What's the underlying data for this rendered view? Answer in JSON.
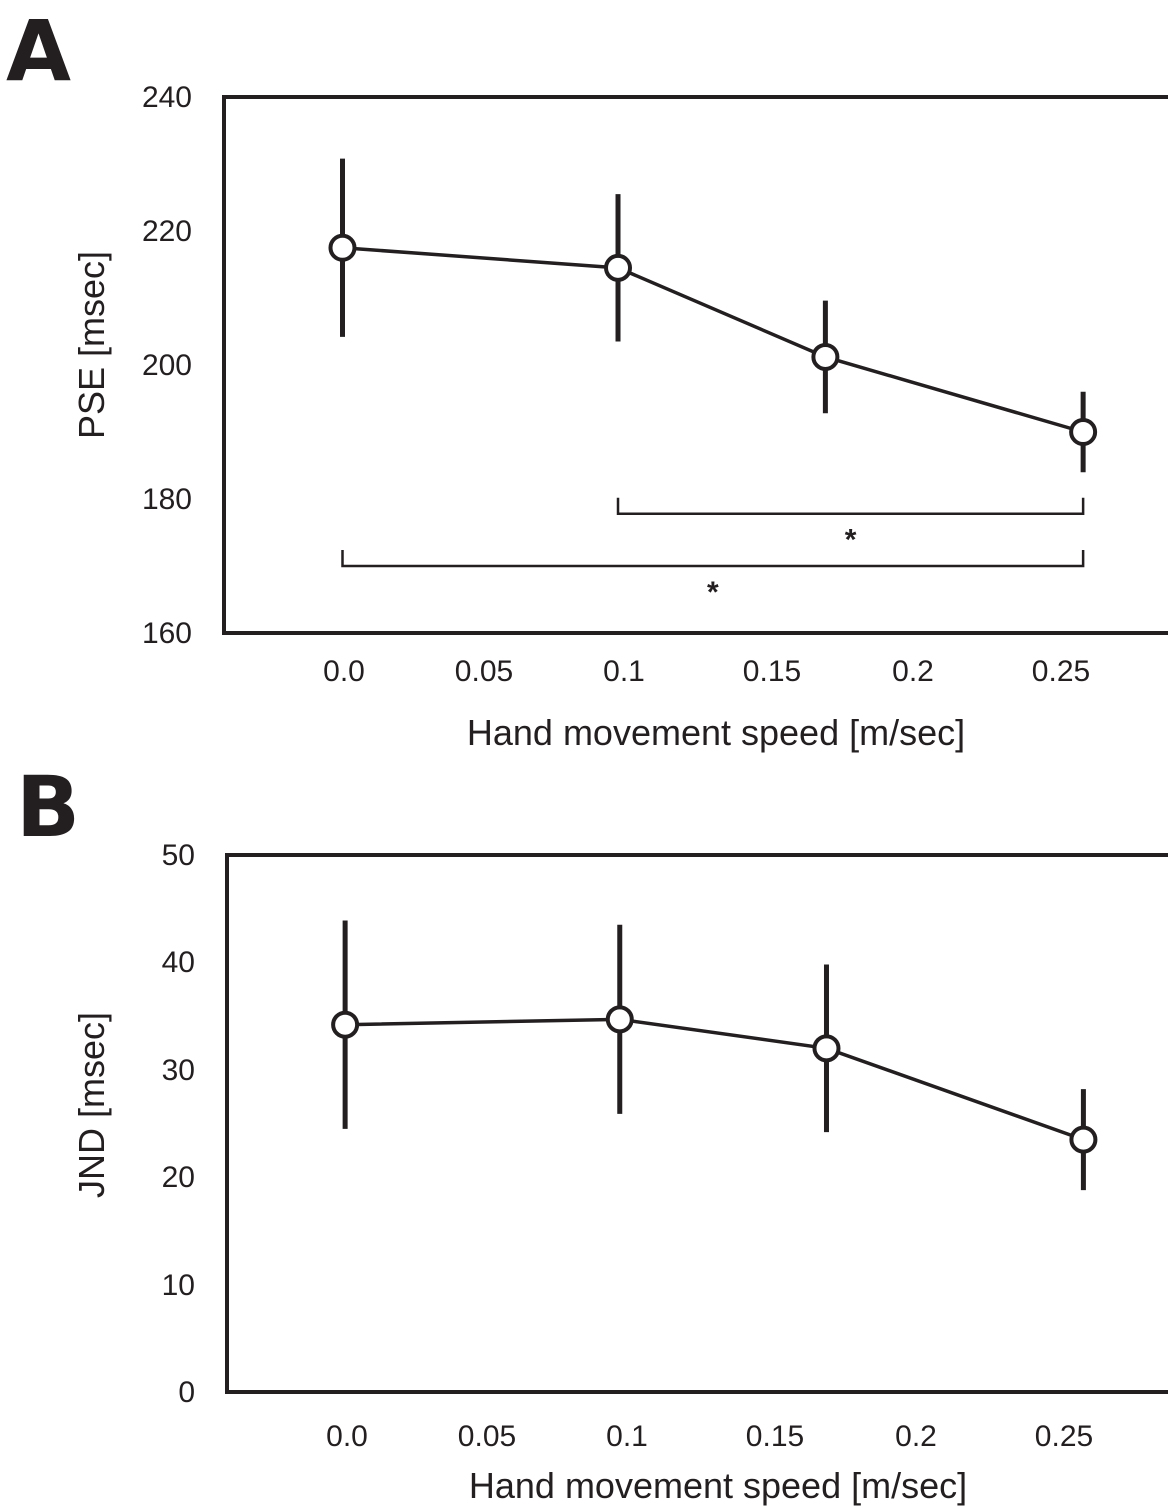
{
  "chart_data": [
    {
      "type": "line",
      "panel_label": "A",
      "xlabel": "Hand movement speed [m/sec]",
      "ylabel": "PSE [msec]",
      "x_ticks": [
        "0.0",
        "0.05",
        "0.1",
        "0.15",
        "0.2",
        "0.25"
      ],
      "y_ticks": [
        "240",
        "220",
        "200",
        "180",
        "160"
      ],
      "ylim": [
        160,
        240
      ],
      "xlim": [
        -0.04,
        0.28
      ],
      "x": [
        0.0,
        0.093,
        0.163,
        0.25
      ],
      "values": [
        217.5,
        214.5,
        201.2,
        190.0
      ],
      "errors": [
        13.3,
        11.0,
        8.4,
        6.0
      ],
      "significance": [
        {
          "from": 0.093,
          "to": 0.25,
          "y": 177.8,
          "label": "*"
        },
        {
          "from": 0.0,
          "to": 0.25,
          "y": 170.0,
          "label": "*"
        }
      ]
    },
    {
      "type": "line",
      "panel_label": "B",
      "xlabel": "Hand movement speed [m/sec]",
      "ylabel": "JND [msec]",
      "x_ticks": [
        "0.0",
        "0.05",
        "0.1",
        "0.15",
        "0.2",
        "0.25"
      ],
      "y_ticks": [
        "50",
        "40",
        "30",
        "20",
        "10",
        "0"
      ],
      "ylim": [
        0,
        50
      ],
      "xlim": [
        -0.04,
        0.28
      ],
      "x": [
        0.0,
        0.093,
        0.163,
        0.25
      ],
      "values": [
        34.2,
        34.7,
        32.0,
        23.5
      ],
      "errors": [
        9.7,
        8.8,
        7.8,
        4.7
      ]
    }
  ]
}
